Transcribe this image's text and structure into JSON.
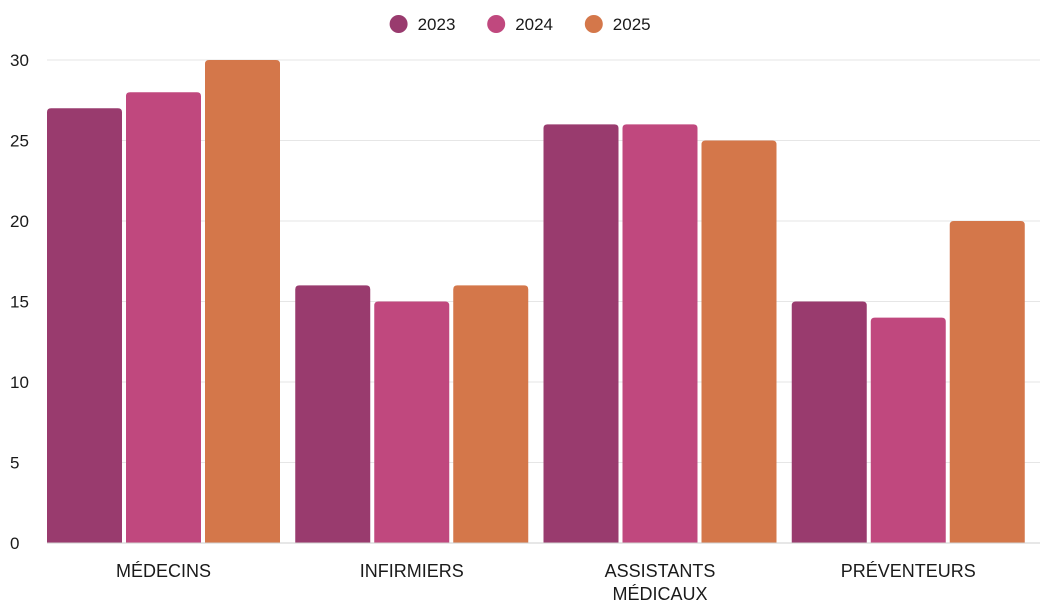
{
  "chart_data": {
    "type": "bar",
    "title": "",
    "xlabel": "",
    "ylabel": "",
    "categories": [
      "MÉDECINS",
      "INFIRMIERS",
      "ASSISTANTS MÉDICAUX",
      "PRÉVENTEURS"
    ],
    "category_lines": [
      [
        "MÉDECINS"
      ],
      [
        "INFIRMIERS"
      ],
      [
        "ASSISTANTS",
        "MÉDICAUX"
      ],
      [
        "PRÉVENTEURS"
      ]
    ],
    "series": [
      {
        "name": "2023",
        "color": "#993b6e",
        "values": [
          27,
          16,
          26,
          15
        ]
      },
      {
        "name": "2024",
        "color": "#c0487e",
        "values": [
          28,
          15,
          26,
          14
        ]
      },
      {
        "name": "2025",
        "color": "#d4774a",
        "values": [
          30,
          16,
          25,
          20
        ]
      }
    ],
    "ylim": [
      0,
      30
    ],
    "yticks": [
      0,
      5,
      10,
      15,
      20,
      25,
      30
    ],
    "grid": true,
    "legend_position": "top-center"
  }
}
